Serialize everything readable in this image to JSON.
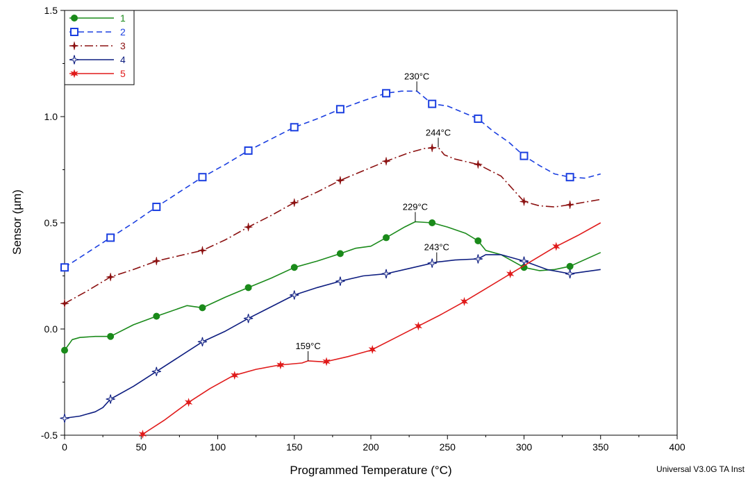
{
  "chart_data": {
    "type": "line",
    "xlabel": "Programmed Temperature (°C)",
    "ylabel": "Sensor (µm)",
    "xlim": [
      0,
      400
    ],
    "ylim": [
      -0.5,
      1.5
    ],
    "x_ticks": [
      "0",
      "50",
      "100",
      "150",
      "200",
      "250",
      "300",
      "350",
      "400"
    ],
    "y_ticks": [
      "-0.5",
      "0.0",
      "0.5",
      "1.0",
      "1.5"
    ],
    "legend_position": "top-left",
    "series": [
      {
        "name": "1",
        "color": "#1a8a1a",
        "dash": "solid",
        "marker": "filled-circle",
        "points": [
          [
            0,
            -0.1
          ],
          [
            5,
            -0.05
          ],
          [
            10,
            -0.04
          ],
          [
            20,
            -0.035
          ],
          [
            30,
            -0.035
          ],
          [
            45,
            0.02
          ],
          [
            60,
            0.06
          ],
          [
            80,
            0.11
          ],
          [
            90,
            0.1
          ],
          [
            105,
            0.15
          ],
          [
            120,
            0.195
          ],
          [
            135,
            0.24
          ],
          [
            150,
            0.29
          ],
          [
            165,
            0.32
          ],
          [
            180,
            0.355
          ],
          [
            190,
            0.38
          ],
          [
            200,
            0.39
          ],
          [
            210,
            0.43
          ],
          [
            222,
            0.48
          ],
          [
            229,
            0.505
          ],
          [
            240,
            0.5
          ],
          [
            250,
            0.48
          ],
          [
            262,
            0.45
          ],
          [
            270,
            0.415
          ],
          [
            275,
            0.37
          ],
          [
            285,
            0.35
          ],
          [
            300,
            0.29
          ],
          [
            310,
            0.275
          ],
          [
            320,
            0.28
          ],
          [
            330,
            0.295
          ],
          [
            350,
            0.36
          ]
        ],
        "markers_x": [
          0,
          30,
          60,
          90,
          120,
          150,
          180,
          210,
          240,
          270,
          300,
          330
        ]
      },
      {
        "name": "2",
        "color": "#1a3ee0",
        "dash": "8,5",
        "marker": "open-square",
        "points": [
          [
            0,
            0.29
          ],
          [
            15,
            0.36
          ],
          [
            30,
            0.43
          ],
          [
            45,
            0.5
          ],
          [
            60,
            0.575
          ],
          [
            75,
            0.645
          ],
          [
            90,
            0.715
          ],
          [
            105,
            0.775
          ],
          [
            120,
            0.84
          ],
          [
            135,
            0.895
          ],
          [
            150,
            0.95
          ],
          [
            165,
            0.99
          ],
          [
            180,
            1.035
          ],
          [
            195,
            1.075
          ],
          [
            210,
            1.11
          ],
          [
            220,
            1.12
          ],
          [
            230,
            1.12
          ],
          [
            235,
            1.09
          ],
          [
            240,
            1.06
          ],
          [
            250,
            1.05
          ],
          [
            260,
            1.02
          ],
          [
            270,
            0.99
          ],
          [
            280,
            0.93
          ],
          [
            290,
            0.88
          ],
          [
            300,
            0.815
          ],
          [
            310,
            0.77
          ],
          [
            320,
            0.73
          ],
          [
            330,
            0.715
          ],
          [
            340,
            0.71
          ],
          [
            350,
            0.73
          ]
        ],
        "markers_x": [
          0,
          30,
          60,
          90,
          120,
          150,
          180,
          210,
          240,
          270,
          300,
          330
        ]
      },
      {
        "name": "3",
        "color": "#8b1010",
        "dash": "12,4,2,4",
        "marker": "plus-star",
        "points": [
          [
            0,
            0.12
          ],
          [
            15,
            0.18
          ],
          [
            30,
            0.245
          ],
          [
            45,
            0.28
          ],
          [
            60,
            0.32
          ],
          [
            75,
            0.345
          ],
          [
            90,
            0.37
          ],
          [
            105,
            0.42
          ],
          [
            120,
            0.48
          ],
          [
            135,
            0.535
          ],
          [
            150,
            0.595
          ],
          [
            165,
            0.645
          ],
          [
            180,
            0.7
          ],
          [
            195,
            0.745
          ],
          [
            210,
            0.79
          ],
          [
            225,
            0.83
          ],
          [
            235,
            0.85
          ],
          [
            244,
            0.855
          ],
          [
            248,
            0.82
          ],
          [
            255,
            0.8
          ],
          [
            270,
            0.775
          ],
          [
            285,
            0.72
          ],
          [
            295,
            0.64
          ],
          [
            300,
            0.6
          ],
          [
            310,
            0.58
          ],
          [
            320,
            0.575
          ],
          [
            330,
            0.585
          ],
          [
            350,
            0.61
          ]
        ],
        "markers_x": [
          0,
          30,
          60,
          90,
          120,
          150,
          180,
          210,
          240,
          270,
          300,
          330
        ]
      },
      {
        "name": "4",
        "color": "#0d1d80",
        "dash": "solid",
        "marker": "open-star",
        "points": [
          [
            0,
            -0.42
          ],
          [
            10,
            -0.41
          ],
          [
            20,
            -0.39
          ],
          [
            25,
            -0.37
          ],
          [
            30,
            -0.33
          ],
          [
            45,
            -0.27
          ],
          [
            60,
            -0.2
          ],
          [
            75,
            -0.13
          ],
          [
            90,
            -0.06
          ],
          [
            105,
            -0.01
          ],
          [
            120,
            0.05
          ],
          [
            135,
            0.105
          ],
          [
            150,
            0.16
          ],
          [
            165,
            0.195
          ],
          [
            180,
            0.225
          ],
          [
            195,
            0.25
          ],
          [
            210,
            0.26
          ],
          [
            225,
            0.285
          ],
          [
            243,
            0.315
          ],
          [
            255,
            0.325
          ],
          [
            270,
            0.33
          ],
          [
            275,
            0.35
          ],
          [
            285,
            0.35
          ],
          [
            300,
            0.32
          ],
          [
            315,
            0.28
          ],
          [
            330,
            0.26
          ],
          [
            350,
            0.28
          ]
        ],
        "markers_x": [
          0,
          30,
          60,
          90,
          120,
          150,
          180,
          210,
          240,
          270,
          300,
          330
        ]
      },
      {
        "name": "5",
        "color": "#e01a1a",
        "dash": "solid",
        "marker": "star",
        "points": [
          [
            50,
            -0.5
          ],
          [
            65,
            -0.43
          ],
          [
            80,
            -0.35
          ],
          [
            95,
            -0.28
          ],
          [
            110,
            -0.22
          ],
          [
            125,
            -0.19
          ],
          [
            140,
            -0.17
          ],
          [
            155,
            -0.16
          ],
          [
            159,
            -0.15
          ],
          [
            170,
            -0.155
          ],
          [
            185,
            -0.13
          ],
          [
            200,
            -0.1
          ],
          [
            215,
            -0.045
          ],
          [
            230,
            0.01
          ],
          [
            245,
            0.065
          ],
          [
            260,
            0.125
          ],
          [
            275,
            0.19
          ],
          [
            290,
            0.255
          ],
          [
            305,
            0.32
          ],
          [
            320,
            0.385
          ],
          [
            335,
            0.44
          ],
          [
            350,
            0.5
          ]
        ],
        "markers_x": [
          51,
          81,
          111,
          141,
          171,
          201,
          231,
          261,
          291,
          321
        ]
      }
    ],
    "annotations": [
      {
        "label": "230°C",
        "x": 230,
        "y": 1.12
      },
      {
        "label": "244°C",
        "x": 244,
        "y": 0.855
      },
      {
        "label": "229°C",
        "x": 229,
        "y": 0.505
      },
      {
        "label": "243°C",
        "x": 243,
        "y": 0.315
      },
      {
        "label": "159°C",
        "x": 159,
        "y": -0.15
      }
    ]
  },
  "footer": "Universal V3.0G TA Inst"
}
